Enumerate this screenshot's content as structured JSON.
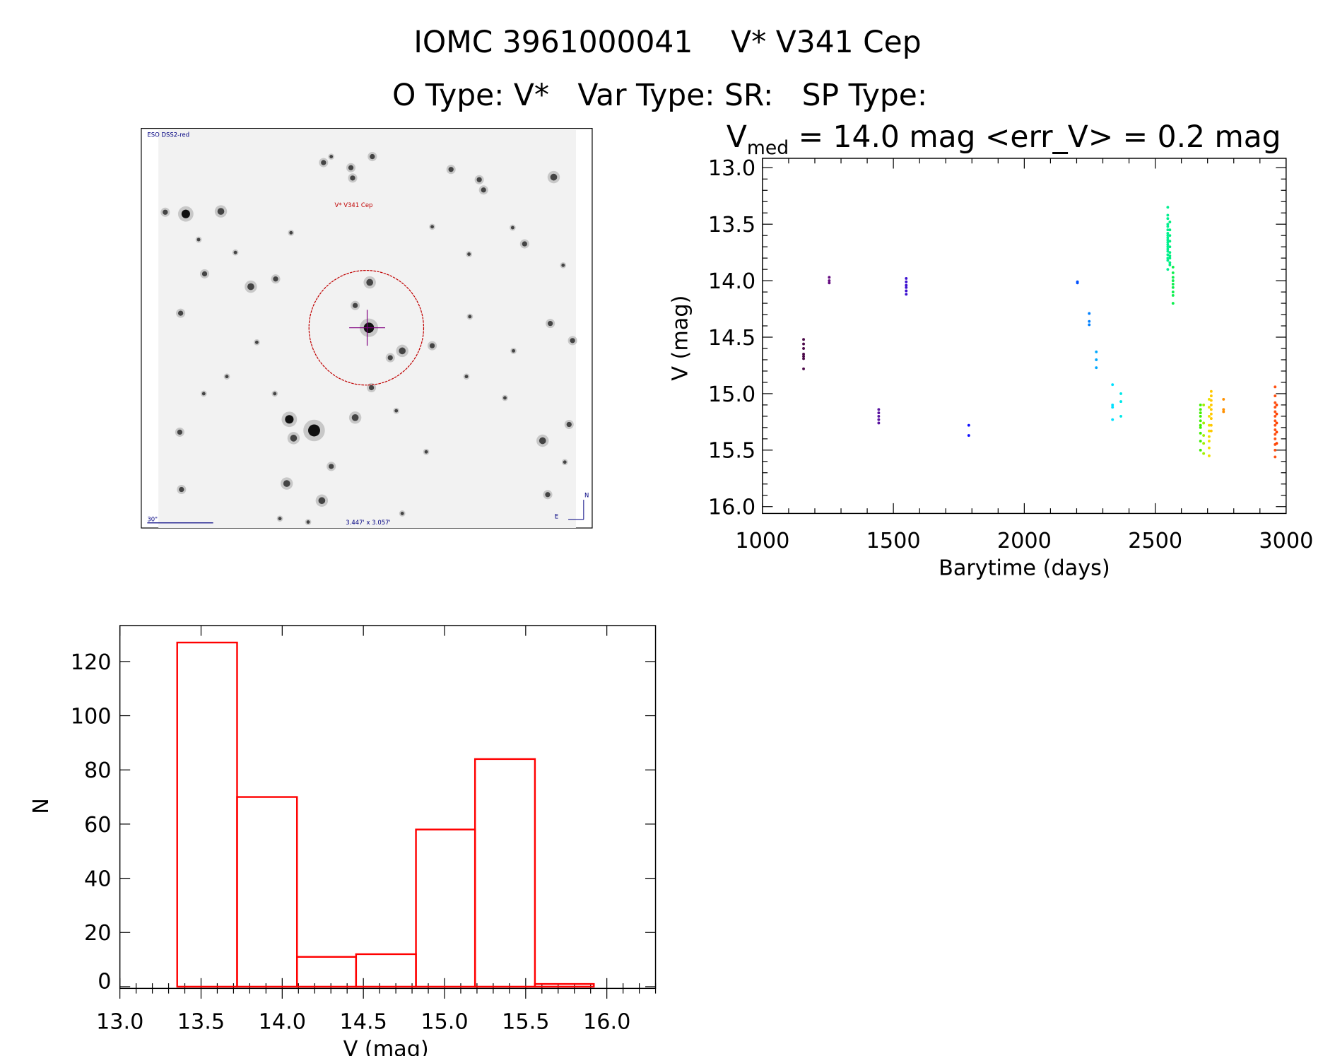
{
  "header": {
    "title_line1": "IOMC 3961000041    V* V341 Cep",
    "title_line2": "O Type: V*   Var Type: SR:   SP Type:",
    "vmed_symbol": "V",
    "vmed_subscript": "med",
    "stats_text": " = 14.0 mag <err_V> = 0.2 mag"
  },
  "finder_image": {
    "survey_label": "ESO DSS2-red",
    "target_label": "V* V341 Cep",
    "scale_label": "30\"",
    "field_size_label": "3.447' x 3.057'",
    "north_label": "N",
    "east_label": "E",
    "circle_color": "#c00000",
    "crosshair_color": "#800080"
  },
  "chart_data": [
    {
      "type": "scatter",
      "title": "",
      "xlabel": "Barytime (days)",
      "ylabel": "V (mag)",
      "xlim": [
        1000,
        3000
      ],
      "ylim": [
        16.0,
        13.0
      ],
      "y_inverted": true,
      "xticks": [
        "1000",
        "1500",
        "2000",
        "2500",
        "3000"
      ],
      "yticks": [
        "13.0",
        "13.5",
        "14.0",
        "14.5",
        "15.0",
        "15.5",
        "16.0"
      ],
      "groups": [
        {
          "day": 1157,
          "color": "#4a0848",
          "mags": [
            14.52,
            14.56,
            14.6,
            14.65,
            14.67,
            14.69,
            14.78
          ]
        },
        {
          "day": 1255,
          "color": "#640a80",
          "mags": [
            13.97,
            14.0,
            14.02
          ]
        },
        {
          "day": 1444,
          "color": "#5a14a0",
          "mags": [
            15.14,
            15.17,
            15.2,
            15.23,
            15.26
          ]
        },
        {
          "day": 1549,
          "color": "#3c10d0",
          "mags": [
            13.98,
            14.01,
            14.04,
            14.06,
            14.09,
            14.12
          ]
        },
        {
          "day": 1788,
          "color": "#1010ff",
          "mags": [
            15.28,
            15.37
          ]
        },
        {
          "day": 2203,
          "color": "#0050ff",
          "mags": [
            14.01,
            14.02
          ]
        },
        {
          "day": 2248,
          "color": "#0080ff",
          "mags": [
            14.29,
            14.36,
            14.39
          ]
        },
        {
          "day": 2275,
          "color": "#00a8ff",
          "mags": [
            14.63,
            14.7,
            14.77
          ]
        },
        {
          "day": 2337,
          "color": "#00e0ff",
          "mags": [
            14.92,
            15.1,
            15.12,
            15.23
          ]
        },
        {
          "day": 2369,
          "color": "#00e8e8",
          "mags": [
            15.0,
            15.07,
            15.2
          ]
        },
        {
          "day": 2548,
          "color": "#00f090",
          "mags": [
            13.35,
            13.42,
            13.45,
            13.5,
            13.52,
            13.55,
            13.58,
            13.6,
            13.62,
            13.64,
            13.66,
            13.68,
            13.7,
            13.72,
            13.74,
            13.77,
            13.8,
            13.82,
            13.9
          ]
        },
        {
          "day": 2556,
          "color": "#00f080",
          "mags": [
            13.48,
            13.55,
            13.6,
            13.65,
            13.7,
            13.75,
            13.78,
            13.8,
            13.84,
            13.86
          ]
        },
        {
          "day": 2568,
          "color": "#10f050",
          "mags": [
            13.88,
            13.93,
            13.97,
            14.0,
            14.03,
            14.06,
            14.1,
            14.13,
            14.2
          ]
        },
        {
          "day": 2673,
          "color": "#40f000",
          "mags": [
            15.1,
            15.14,
            15.17,
            15.2,
            15.24,
            15.28,
            15.3,
            15.35,
            15.42,
            15.5
          ]
        },
        {
          "day": 2685,
          "color": "#a0f000",
          "mags": [
            15.1,
            15.26,
            15.37,
            15.44,
            15.53
          ]
        },
        {
          "day": 2706,
          "color": "#f0e000",
          "mags": [
            15.05,
            15.12,
            15.2,
            15.28,
            15.33,
            15.38,
            15.42,
            15.48,
            15.55
          ]
        },
        {
          "day": 2714,
          "color": "#ffc800",
          "mags": [
            14.98,
            15.02,
            15.06,
            15.1,
            15.14,
            15.18,
            15.22,
            15.28,
            15.33
          ]
        },
        {
          "day": 2761,
          "color": "#ff9000",
          "mags": [
            15.05,
            15.14,
            15.16
          ]
        },
        {
          "day": 2958,
          "color": "#ff5010",
          "mags": [
            14.94,
            15.02,
            15.08,
            15.12,
            15.16,
            15.2,
            15.24,
            15.28,
            15.32,
            15.36,
            15.4,
            15.45,
            15.5,
            15.56
          ]
        },
        {
          "day": 2964,
          "color": "#ff4000",
          "mags": [
            15.1,
            15.18,
            15.26,
            15.34,
            15.44
          ]
        }
      ]
    },
    {
      "type": "bar",
      "subtype": "histogram",
      "title": "",
      "xlabel": "V (mag)",
      "ylabel": "N",
      "xlim": [
        13.0,
        16.3
      ],
      "ylim": [
        0,
        130
      ],
      "xticks": [
        "13.0",
        "13.5",
        "14.0",
        "14.5",
        "15.0",
        "15.5",
        "16.0"
      ],
      "yticks": [
        "0",
        "20",
        "40",
        "60",
        "80",
        "100",
        "120"
      ],
      "bin_edges": [
        13.353,
        13.722,
        14.091,
        14.455,
        14.824,
        15.188,
        15.557,
        15.92
      ],
      "values": [
        127,
        70,
        11,
        12,
        58,
        84,
        1
      ],
      "color": "#ff0000"
    }
  ]
}
